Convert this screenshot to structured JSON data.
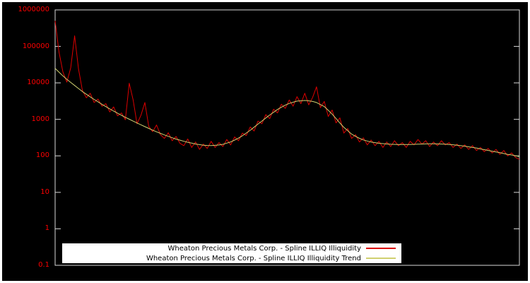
{
  "figure": {
    "outer_background": "#ffffff",
    "plot_background": "#000000",
    "axis_color": "#d9d9d9",
    "tick_label_color": "#ff0000"
  },
  "chart_data": {
    "type": "line",
    "title": "",
    "xlabel": "",
    "ylabel": "",
    "y_scale": "log",
    "ylim": [
      0.1,
      1000000
    ],
    "ytick_labels": [
      "1000000",
      "100000",
      "10000",
      "1000",
      "100",
      "10",
      "1",
      "0.1"
    ],
    "grid": false,
    "legend_position": "bottom-center",
    "axis_color": "#d9d9d9",
    "series": [
      {
        "name": "Wheaton Precious Metals Corp. - Spline ILLIQ Illiquidity",
        "color": "#dd0000",
        "values": [
          500000,
          70000,
          20000,
          10500,
          26000,
          195000,
          24000,
          6200,
          3900,
          5200,
          2900,
          3600,
          2300,
          2700,
          1600,
          2200,
          1250,
          1500,
          980,
          9800,
          3400,
          760,
          1300,
          2900,
          640,
          460,
          700,
          380,
          300,
          430,
          260,
          340,
          220,
          190,
          290,
          170,
          240,
          150,
          210,
          160,
          250,
          170,
          230,
          180,
          280,
          200,
          330,
          260,
          420,
          360,
          620,
          480,
          900,
          760,
          1350,
          1050,
          1900,
          1500,
          2600,
          2000,
          3400,
          2300,
          4200,
          2700,
          5200,
          2500,
          4000,
          7800,
          2100,
          3100,
          1200,
          1800,
          800,
          1100,
          420,
          560,
          300,
          380,
          240,
          310,
          200,
          270,
          190,
          250,
          170,
          240,
          180,
          260,
          190,
          230,
          170,
          250,
          200,
          280,
          210,
          260,
          180,
          240,
          190,
          260,
          200,
          230,
          170,
          210,
          160,
          200,
          150,
          190,
          140,
          170,
          130,
          160,
          120,
          150,
          110,
          140,
          100,
          120,
          90,
          80
        ]
      },
      {
        "name": "Wheaton Precious Metals Corp. - Spline ILLIQ Illiquidity Trend",
        "color": "#d0d070",
        "values": [
          25000,
          19700,
          15500,
          12500,
          10300,
          8500,
          7000,
          5780,
          4890,
          4140,
          3530,
          3030,
          2590,
          2240,
          1940,
          1690,
          1480,
          1290,
          1140,
          1010,
          895,
          796,
          710,
          632,
          564,
          507,
          456,
          413,
          375,
          342,
          313,
          288,
          269,
          251,
          236,
          223,
          211,
          203,
          196,
          193,
          191,
          194,
          199,
          207,
          223,
          241,
          271,
          307,
          355,
          423,
          503,
          611,
          741,
          900,
          1091,
          1318,
          1567,
          1866,
          2148,
          2460,
          2735,
          2951,
          3170,
          3230,
          3296,
          3221,
          3097,
          2891,
          2547,
          2245,
          1770,
          1390,
          1059,
          793,
          603,
          487,
          394,
          343,
          302,
          273,
          255,
          239,
          230,
          221,
          216,
          212,
          208,
          206,
          204,
          204,
          204,
          205,
          207,
          209,
          211,
          213,
          214,
          214,
          213,
          211,
          209,
          205,
          201,
          196,
          190,
          184,
          177,
          170,
          163,
          155,
          148,
          141,
          134,
          128,
          122,
          116,
          110,
          106,
          101,
          95
        ]
      }
    ]
  }
}
